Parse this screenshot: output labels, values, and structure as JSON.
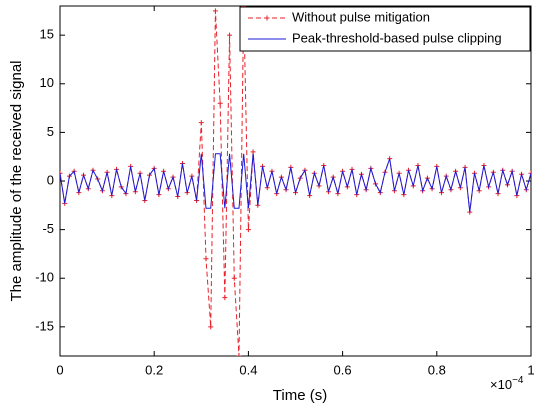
{
  "chart_data": {
    "type": "line",
    "xlabel": "Time (s)",
    "ylabel": "The amplitude of the received signal",
    "x_multiplier": {
      "base": "×10",
      "exponent": "−4"
    },
    "x": [
      0,
      0.01,
      0.02,
      0.03,
      0.04,
      0.05,
      0.06,
      0.07,
      0.08,
      0.09,
      0.1,
      0.11,
      0.12,
      0.13,
      0.14,
      0.15,
      0.16,
      0.17,
      0.18,
      0.19,
      0.2,
      0.21,
      0.22,
      0.23,
      0.24,
      0.25,
      0.26,
      0.27,
      0.28,
      0.29,
      0.3,
      0.31,
      0.32,
      0.33,
      0.34,
      0.35,
      0.36,
      0.37,
      0.38,
      0.39,
      0.4,
      0.41,
      0.42,
      0.43,
      0.44,
      0.45,
      0.46,
      0.47,
      0.48,
      0.49,
      0.5,
      0.51,
      0.52,
      0.53,
      0.54,
      0.55,
      0.56,
      0.57,
      0.58,
      0.59,
      0.6,
      0.61,
      0.62,
      0.63,
      0.64,
      0.65,
      0.66,
      0.67,
      0.68,
      0.69,
      0.7,
      0.71,
      0.72,
      0.73,
      0.74,
      0.75,
      0.76,
      0.77,
      0.78,
      0.79,
      0.8,
      0.81,
      0.82,
      0.83,
      0.84,
      0.85,
      0.86,
      0.87,
      0.88,
      0.89,
      0.9,
      0.91,
      0.92,
      0.93,
      0.94,
      0.95,
      0.96,
      0.97,
      0.98,
      0.99,
      1
    ],
    "series": [
      {
        "name": "Without pulse mitigation",
        "color": "#e8212a",
        "dash": true,
        "marker": "+",
        "values": [
          0.8,
          -2.3,
          0.5,
          1.0,
          -1.2,
          0.6,
          -0.8,
          1.1,
          0.2,
          -1.0,
          0.9,
          -1.5,
          1.2,
          -0.6,
          -1.3,
          1.5,
          -1.1,
          0.8,
          -2.0,
          0.6,
          1.3,
          -1.4,
          1.0,
          -0.8,
          0.4,
          -1.6,
          1.8,
          -1.2,
          0.5,
          -2,
          6,
          -8,
          -15,
          17.5,
          8,
          -12,
          15,
          -10,
          -18,
          18,
          -5,
          3,
          -2.5,
          1.5,
          -0.7,
          1.0,
          -1.3,
          0.4,
          -0.9,
          1.4,
          -1.2,
          0.3,
          1.1,
          -1.5,
          0.8,
          -0.5,
          1.6,
          -1.1,
          0.4,
          -1.3,
          1.0,
          -0.6,
          1.2,
          -1.4,
          0.7,
          -0.9,
          1.3,
          -0.3,
          -1.2,
          0.9,
          2.3,
          -1.0,
          0.8,
          -1.4,
          1.1,
          -0.5,
          1.6,
          -1.0,
          0.3,
          -0.8,
          1.5,
          -1.2,
          0.5,
          -0.9,
          1.0,
          -0.7,
          1.4,
          -3.2,
          0.8,
          -1.0,
          1.6,
          -0.6,
          0.9,
          -1.3,
          1.1,
          -0.4,
          1.0,
          -1.5,
          0.7,
          -0.9,
          0.8
        ]
      },
      {
        "name": "Peak-threshold-based pulse clipping",
        "color": "#1a1ad6",
        "dash": false,
        "values": [
          0.8,
          -2.3,
          0.5,
          1.0,
          -1.2,
          0.6,
          -0.8,
          1.1,
          0.2,
          -1.0,
          0.9,
          -1.5,
          1.2,
          -0.6,
          -1.3,
          1.5,
          -1.1,
          0.8,
          -2.0,
          0.6,
          1.3,
          -1.4,
          1.0,
          -0.8,
          0.4,
          -1.6,
          1.8,
          -1.2,
          0.5,
          -2,
          2.8,
          -2.8,
          -2.8,
          2.8,
          2.8,
          -2.8,
          2.8,
          -2.8,
          -2.8,
          2.8,
          -2.8,
          2.8,
          -2.5,
          1.5,
          -0.7,
          1.0,
          -1.3,
          0.4,
          -0.9,
          1.4,
          -1.2,
          0.3,
          1.1,
          -1.5,
          0.8,
          -0.5,
          1.6,
          -1.1,
          0.4,
          -1.3,
          1.0,
          -0.6,
          1.2,
          -1.4,
          0.7,
          -0.9,
          1.3,
          -0.3,
          -1.2,
          0.9,
          2.3,
          -1.0,
          0.8,
          -1.4,
          1.1,
          -0.5,
          1.6,
          -1.0,
          0.3,
          -0.8,
          1.5,
          -1.2,
          0.5,
          -0.9,
          1.0,
          -0.7,
          1.4,
          -3.2,
          0.8,
          -1.0,
          1.6,
          -0.6,
          0.9,
          -1.3,
          1.1,
          -0.4,
          1.0,
          -1.5,
          0.7,
          -0.9,
          0.8
        ]
      }
    ],
    "xlim": [
      0,
      1
    ],
    "xticks": [
      0,
      0.2,
      0.4,
      0.6,
      0.8,
      1
    ],
    "ylim": [
      -18,
      18
    ],
    "yticks": [
      -15,
      -10,
      -5,
      0,
      5,
      10,
      15
    ],
    "grid": false,
    "legend": "upper right"
  }
}
